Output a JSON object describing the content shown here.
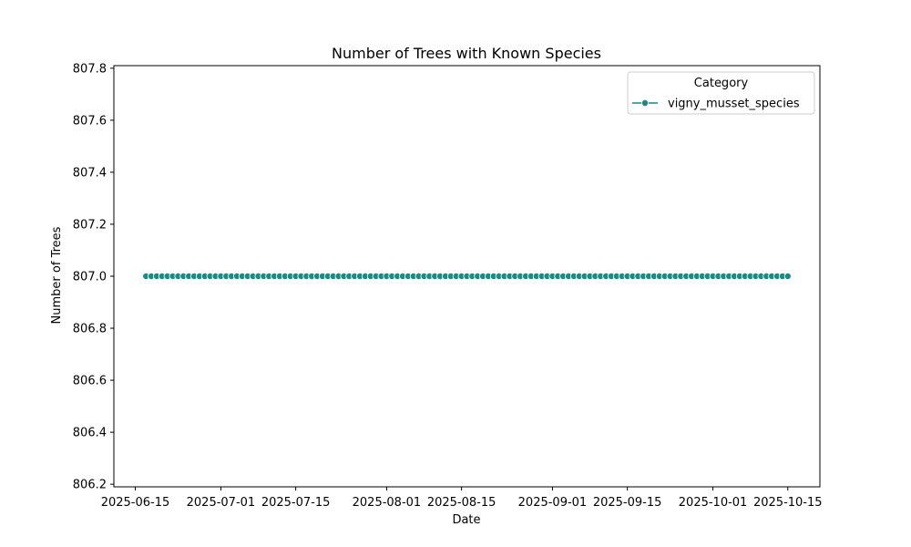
{
  "chart_data": {
    "type": "line",
    "title": "Number of Trees with Known Species",
    "xlabel": "Date",
    "ylabel": "Number of Trees",
    "x_start": "2025-06-17",
    "x_end": "2025-10-15",
    "x_step_days": 1,
    "xlim": [
      "2025-06-11",
      "2025-10-21"
    ],
    "ylim": [
      806.19,
      807.81
    ],
    "x_ticks": [
      "2025-06-15",
      "2025-07-01",
      "2025-07-15",
      "2025-08-01",
      "2025-08-15",
      "2025-09-01",
      "2025-09-15",
      "2025-10-01",
      "2025-10-15"
    ],
    "y_ticks": [
      806.2,
      806.4,
      806.6,
      806.8,
      807.0,
      807.2,
      807.4,
      807.6,
      807.8
    ],
    "legend": {
      "title": "Category",
      "position": "top-right"
    },
    "grid": false,
    "series": [
      {
        "name": "vigny_musset_species",
        "color": "#1a8a82",
        "constant_value": 807.0
      }
    ]
  }
}
